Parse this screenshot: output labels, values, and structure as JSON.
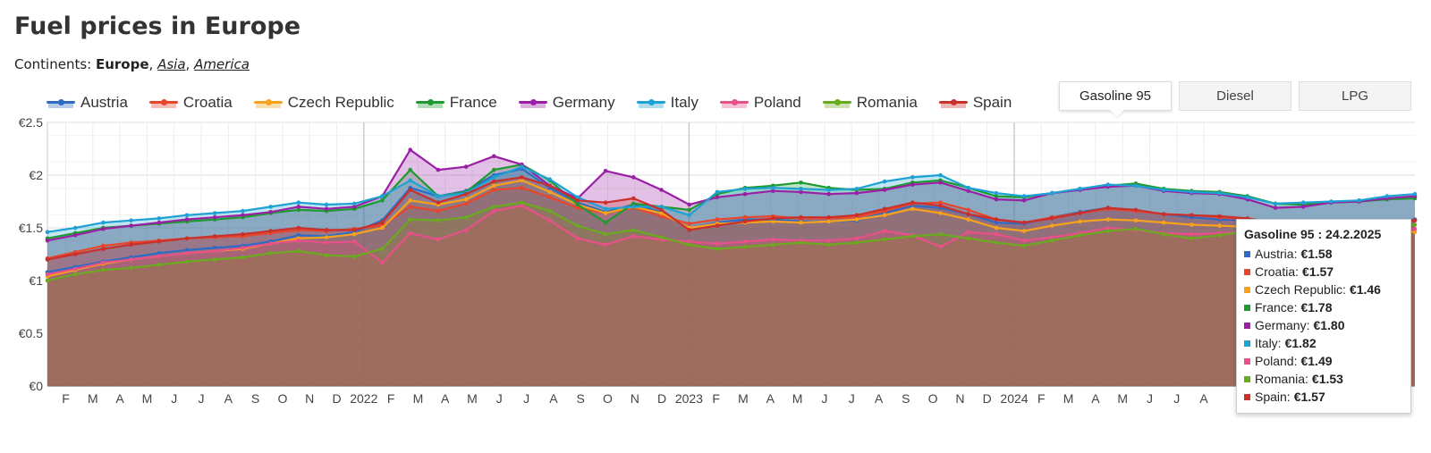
{
  "page": {
    "title": "Fuel prices in Europe",
    "continents_label": "Continents:",
    "continents": [
      "Europe",
      "Asia",
      "America"
    ]
  },
  "tabs": [
    {
      "label": "Gasoline 95",
      "active": true
    },
    {
      "label": "Diesel",
      "active": false
    },
    {
      "label": "LPG",
      "active": false
    }
  ],
  "tooltip": {
    "title": "Gasoline 95 : 24.2.2025",
    "rows": [
      {
        "name": "Austria:",
        "value": "€1.58",
        "color": "#2f6bc2"
      },
      {
        "name": "Croatia:",
        "value": "€1.57",
        "color": "#e8452c"
      },
      {
        "name": "Czech Republic:",
        "value": "€1.46",
        "color": "#f7a21b"
      },
      {
        "name": "France:",
        "value": "€1.78",
        "color": "#1e9a31"
      },
      {
        "name": "Germany:",
        "value": "€1.80",
        "color": "#9a1fa5"
      },
      {
        "name": "Italy:",
        "value": "€1.82",
        "color": "#1ea1d3"
      },
      {
        "name": "Poland:",
        "value": "€1.49",
        "color": "#e8508a"
      },
      {
        "name": "Romania:",
        "value": "€1.53",
        "color": "#6aaa1f"
      },
      {
        "name": "Spain:",
        "value": "€1.57",
        "color": "#c9302c"
      }
    ]
  },
  "chart_data": {
    "type": "area",
    "title": "Fuel prices in Europe",
    "fuel": "Gasoline 95",
    "ylabel": "",
    "ylim": [
      0,
      2.5
    ],
    "yticks": [
      "€0",
      "€0.5",
      "€1",
      "€1.5",
      "€2",
      "€2.5"
    ],
    "x_start": "2021-01",
    "x_end": "2025-02",
    "xticks": [
      "F",
      "M",
      "A",
      "M",
      "J",
      "J",
      "A",
      "S",
      "O",
      "N",
      "D",
      "2022",
      "F",
      "M",
      "A",
      "M",
      "J",
      "J",
      "A",
      "S",
      "O",
      "N",
      "D",
      "2023",
      "F",
      "M",
      "A",
      "M",
      "J",
      "J",
      "A",
      "S",
      "O",
      "N",
      "D",
      "2024",
      "F",
      "M",
      "A",
      "M",
      "J",
      "J",
      "A"
    ],
    "series": [
      {
        "name": "Austria",
        "color": "#2f6bc2",
        "values": [
          1.08,
          1.13,
          1.18,
          1.22,
          1.26,
          1.29,
          1.31,
          1.33,
          1.37,
          1.43,
          1.42,
          1.46,
          1.57,
          1.88,
          1.8,
          1.85,
          2.0,
          2.06,
          1.88,
          1.74,
          1.65,
          1.72,
          1.65,
          1.5,
          1.55,
          1.58,
          1.58,
          1.56,
          1.56,
          1.57,
          1.64,
          1.71,
          1.69,
          1.63,
          1.55,
          1.54,
          1.6,
          1.65,
          1.69,
          1.66,
          1.63,
          1.6,
          1.58,
          1.57,
          1.53,
          1.52,
          1.54,
          1.56,
          1.56,
          1.58
        ]
      },
      {
        "name": "Croatia",
        "color": "#e8452c",
        "values": [
          1.21,
          1.27,
          1.33,
          1.36,
          1.38,
          1.4,
          1.41,
          1.42,
          1.45,
          1.48,
          1.47,
          1.49,
          1.52,
          1.7,
          1.66,
          1.73,
          1.86,
          1.88,
          1.79,
          1.69,
          1.64,
          1.69,
          1.61,
          1.54,
          1.58,
          1.6,
          1.61,
          1.59,
          1.59,
          1.6,
          1.66,
          1.73,
          1.74,
          1.67,
          1.58,
          1.55,
          1.6,
          1.64,
          1.68,
          1.66,
          1.63,
          1.62,
          1.6,
          1.58,
          1.56,
          1.55,
          1.55,
          1.56,
          1.56,
          1.57
        ]
      },
      {
        "name": "Czech Republic",
        "color": "#f7a21b",
        "values": [
          1.04,
          1.1,
          1.16,
          1.2,
          1.23,
          1.26,
          1.28,
          1.3,
          1.35,
          1.4,
          1.41,
          1.44,
          1.5,
          1.76,
          1.72,
          1.77,
          1.9,
          1.95,
          1.84,
          1.72,
          1.64,
          1.7,
          1.64,
          1.5,
          1.54,
          1.55,
          1.56,
          1.55,
          1.56,
          1.58,
          1.62,
          1.68,
          1.64,
          1.58,
          1.5,
          1.47,
          1.52,
          1.56,
          1.58,
          1.57,
          1.55,
          1.53,
          1.52,
          1.51,
          1.47,
          1.46,
          1.47,
          1.46,
          1.46,
          1.46
        ]
      },
      {
        "name": "France",
        "color": "#1e9a31",
        "values": [
          1.4,
          1.45,
          1.5,
          1.52,
          1.54,
          1.56,
          1.58,
          1.6,
          1.64,
          1.67,
          1.66,
          1.68,
          1.76,
          2.05,
          1.8,
          1.84,
          2.05,
          2.1,
          1.95,
          1.72,
          1.55,
          1.73,
          1.7,
          1.67,
          1.82,
          1.88,
          1.9,
          1.93,
          1.88,
          1.86,
          1.87,
          1.93,
          1.95,
          1.88,
          1.8,
          1.79,
          1.83,
          1.87,
          1.9,
          1.92,
          1.87,
          1.85,
          1.84,
          1.8,
          1.73,
          1.72,
          1.74,
          1.75,
          1.77,
          1.78
        ]
      },
      {
        "name": "Germany",
        "color": "#9a1fa5",
        "values": [
          1.38,
          1.43,
          1.49,
          1.52,
          1.55,
          1.58,
          1.6,
          1.62,
          1.65,
          1.7,
          1.68,
          1.7,
          1.8,
          2.24,
          2.05,
          2.08,
          2.18,
          2.1,
          1.9,
          1.78,
          2.04,
          1.98,
          1.86,
          1.72,
          1.79,
          1.82,
          1.85,
          1.84,
          1.82,
          1.83,
          1.86,
          1.91,
          1.93,
          1.85,
          1.77,
          1.76,
          1.83,
          1.86,
          1.89,
          1.9,
          1.85,
          1.83,
          1.82,
          1.77,
          1.69,
          1.7,
          1.74,
          1.75,
          1.78,
          1.8
        ]
      },
      {
        "name": "Italy",
        "color": "#1ea1d3",
        "values": [
          1.46,
          1.5,
          1.55,
          1.57,
          1.59,
          1.62,
          1.64,
          1.66,
          1.7,
          1.74,
          1.72,
          1.73,
          1.8,
          1.95,
          1.8,
          1.83,
          1.98,
          2.08,
          1.96,
          1.79,
          1.68,
          1.7,
          1.7,
          1.62,
          1.84,
          1.87,
          1.88,
          1.87,
          1.86,
          1.87,
          1.94,
          1.98,
          2.0,
          1.88,
          1.83,
          1.8,
          1.83,
          1.87,
          1.91,
          1.9,
          1.86,
          1.84,
          1.83,
          1.79,
          1.73,
          1.74,
          1.75,
          1.76,
          1.8,
          1.82
        ]
      },
      {
        "name": "Poland",
        "color": "#e8508a",
        "values": [
          1.06,
          1.11,
          1.17,
          1.2,
          1.23,
          1.26,
          1.28,
          1.31,
          1.35,
          1.38,
          1.36,
          1.37,
          1.17,
          1.45,
          1.39,
          1.48,
          1.66,
          1.71,
          1.57,
          1.4,
          1.34,
          1.42,
          1.39,
          1.37,
          1.35,
          1.37,
          1.39,
          1.38,
          1.38,
          1.4,
          1.47,
          1.43,
          1.32,
          1.46,
          1.44,
          1.38,
          1.41,
          1.45,
          1.5,
          1.48,
          1.45,
          1.44,
          1.45,
          1.46,
          1.43,
          1.44,
          1.46,
          1.47,
          1.48,
          1.49
        ]
      },
      {
        "name": "Romania",
        "color": "#6aaa1f",
        "values": [
          1.0,
          1.06,
          1.1,
          1.12,
          1.15,
          1.18,
          1.2,
          1.22,
          1.26,
          1.28,
          1.24,
          1.23,
          1.3,
          1.58,
          1.57,
          1.6,
          1.7,
          1.74,
          1.66,
          1.52,
          1.44,
          1.48,
          1.41,
          1.34,
          1.3,
          1.32,
          1.34,
          1.36,
          1.34,
          1.36,
          1.39,
          1.42,
          1.44,
          1.4,
          1.36,
          1.33,
          1.38,
          1.43,
          1.47,
          1.49,
          1.44,
          1.4,
          1.43,
          1.47,
          1.48,
          1.49,
          1.5,
          1.51,
          1.52,
          1.53
        ]
      },
      {
        "name": "Spain",
        "color": "#c9302c",
        "values": [
          1.2,
          1.25,
          1.3,
          1.34,
          1.37,
          1.4,
          1.42,
          1.44,
          1.47,
          1.5,
          1.48,
          1.48,
          1.55,
          1.86,
          1.74,
          1.82,
          1.94,
          1.98,
          1.9,
          1.76,
          1.74,
          1.78,
          1.67,
          1.48,
          1.52,
          1.56,
          1.59,
          1.6,
          1.6,
          1.62,
          1.68,
          1.74,
          1.71,
          1.63,
          1.58,
          1.55,
          1.59,
          1.64,
          1.69,
          1.67,
          1.63,
          1.62,
          1.61,
          1.59,
          1.55,
          1.54,
          1.55,
          1.56,
          1.56,
          1.57
        ]
      }
    ]
  }
}
